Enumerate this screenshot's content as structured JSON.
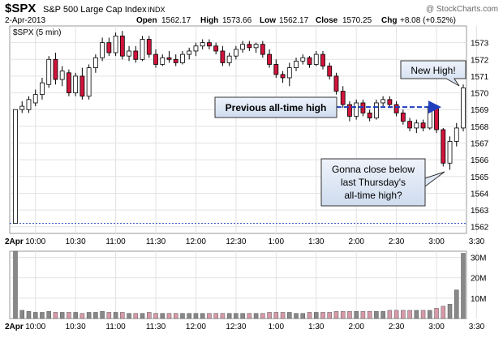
{
  "header": {
    "symbol": "$SPX",
    "name": "S&P 500 Large Cap Index",
    "exchange": "INDX",
    "watermark": "@ StockCharts.com",
    "date": "2-Apr-2013",
    "open_label": "Open",
    "open_value": "1562.17",
    "high_label": "High",
    "high_value": "1573.66",
    "low_label": "Low",
    "low_value": "1562.17",
    "close_label": "Close",
    "close_value": "1570.25",
    "chg_label": "Chg",
    "chg_value": "+8.08 (+0.52%)"
  },
  "chart_data": {
    "type": "candlestick",
    "legend": "$SPX (5 min)",
    "x_ticks": [
      "2Apr",
      "10:00",
      "10:30",
      "11:00",
      "11:30",
      "12:00",
      "12:30",
      "1:00",
      "1:30",
      "2:00",
      "2:30",
      "3:00",
      "3:30"
    ],
    "y_ticks": [
      1562,
      1563,
      1564,
      1565,
      1566,
      1567,
      1568,
      1569,
      1570,
      1571,
      1572,
      1573
    ],
    "ylim": [
      1561.6,
      1574.0
    ],
    "volume_ticks": [
      "10M",
      "20M",
      "30M"
    ],
    "volume_ylim": [
      0,
      33
    ],
    "colors": {
      "up": "#ffffff",
      "down": "#d1143c",
      "volume_up": "#888888",
      "volume_down": "#d89aa8",
      "arrow": "#1f3fbf"
    },
    "candles": [
      {
        "o": 1562.2,
        "h": 1569.0,
        "l": 1562.2,
        "c": 1569.0
      },
      {
        "o": 1569.0,
        "h": 1569.5,
        "l": 1568.8,
        "c": 1569.2
      },
      {
        "o": 1569.0,
        "h": 1569.8,
        "l": 1568.8,
        "c": 1569.6
      },
      {
        "o": 1569.4,
        "h": 1570.2,
        "l": 1569.2,
        "c": 1569.9
      },
      {
        "o": 1569.9,
        "h": 1570.9,
        "l": 1569.6,
        "c": 1570.6
      },
      {
        "o": 1570.5,
        "h": 1572.2,
        "l": 1570.3,
        "c": 1572.0
      },
      {
        "o": 1572.0,
        "h": 1572.4,
        "l": 1570.5,
        "c": 1570.8
      },
      {
        "o": 1570.8,
        "h": 1571.6,
        "l": 1570.4,
        "c": 1571.3
      },
      {
        "o": 1571.2,
        "h": 1571.4,
        "l": 1569.8,
        "c": 1570.0
      },
      {
        "o": 1570.0,
        "h": 1571.2,
        "l": 1569.8,
        "c": 1571.0
      },
      {
        "o": 1571.0,
        "h": 1571.5,
        "l": 1569.6,
        "c": 1569.8
      },
      {
        "o": 1569.8,
        "h": 1571.7,
        "l": 1569.6,
        "c": 1571.5
      },
      {
        "o": 1571.5,
        "h": 1572.3,
        "l": 1571.2,
        "c": 1572.1
      },
      {
        "o": 1572.1,
        "h": 1573.3,
        "l": 1571.9,
        "c": 1573.0
      },
      {
        "o": 1573.0,
        "h": 1573.3,
        "l": 1572.2,
        "c": 1572.4
      },
      {
        "o": 1572.4,
        "h": 1573.6,
        "l": 1572.2,
        "c": 1573.4
      },
      {
        "o": 1573.4,
        "h": 1573.7,
        "l": 1572.0,
        "c": 1572.2
      },
      {
        "o": 1572.2,
        "h": 1572.8,
        "l": 1571.9,
        "c": 1572.5
      },
      {
        "o": 1572.5,
        "h": 1572.8,
        "l": 1571.8,
        "c": 1572.0
      },
      {
        "o": 1572.0,
        "h": 1573.4,
        "l": 1571.9,
        "c": 1573.2
      },
      {
        "o": 1573.2,
        "h": 1573.4,
        "l": 1572.1,
        "c": 1572.3
      },
      {
        "o": 1572.3,
        "h": 1572.6,
        "l": 1571.5,
        "c": 1571.7
      },
      {
        "o": 1571.7,
        "h": 1572.3,
        "l": 1571.6,
        "c": 1572.1
      },
      {
        "o": 1572.1,
        "h": 1572.5,
        "l": 1571.8,
        "c": 1572.0
      },
      {
        "o": 1572.0,
        "h": 1572.3,
        "l": 1571.6,
        "c": 1571.8
      },
      {
        "o": 1571.8,
        "h": 1572.5,
        "l": 1571.7,
        "c": 1572.3
      },
      {
        "o": 1572.3,
        "h": 1572.7,
        "l": 1572.0,
        "c": 1572.5
      },
      {
        "o": 1572.5,
        "h": 1573.0,
        "l": 1572.2,
        "c": 1572.8
      },
      {
        "o": 1572.8,
        "h": 1573.2,
        "l": 1572.6,
        "c": 1573.0
      },
      {
        "o": 1573.0,
        "h": 1573.2,
        "l": 1572.6,
        "c": 1572.8
      },
      {
        "o": 1572.8,
        "h": 1573.0,
        "l": 1572.3,
        "c": 1572.5
      },
      {
        "o": 1572.5,
        "h": 1572.8,
        "l": 1571.6,
        "c": 1571.8
      },
      {
        "o": 1571.8,
        "h": 1572.4,
        "l": 1571.6,
        "c": 1572.2
      },
      {
        "o": 1572.2,
        "h": 1572.8,
        "l": 1572.0,
        "c": 1572.6
      },
      {
        "o": 1572.6,
        "h": 1573.1,
        "l": 1572.4,
        "c": 1572.9
      },
      {
        "o": 1572.9,
        "h": 1573.1,
        "l": 1572.5,
        "c": 1572.7
      },
      {
        "o": 1572.7,
        "h": 1573.0,
        "l": 1572.4,
        "c": 1572.9
      },
      {
        "o": 1572.9,
        "h": 1573.1,
        "l": 1572.1,
        "c": 1572.3
      },
      {
        "o": 1572.3,
        "h": 1572.6,
        "l": 1571.5,
        "c": 1571.7
      },
      {
        "o": 1571.7,
        "h": 1572.0,
        "l": 1570.9,
        "c": 1571.1
      },
      {
        "o": 1571.1,
        "h": 1571.3,
        "l": 1570.6,
        "c": 1570.9
      },
      {
        "o": 1570.9,
        "h": 1571.8,
        "l": 1570.4,
        "c": 1571.5
      },
      {
        "o": 1571.5,
        "h": 1572.1,
        "l": 1571.3,
        "c": 1571.9
      },
      {
        "o": 1571.9,
        "h": 1572.3,
        "l": 1571.7,
        "c": 1572.1
      },
      {
        "o": 1572.1,
        "h": 1572.2,
        "l": 1571.5,
        "c": 1571.7
      },
      {
        "o": 1571.7,
        "h": 1572.5,
        "l": 1571.6,
        "c": 1572.3
      },
      {
        "o": 1572.3,
        "h": 1572.5,
        "l": 1571.4,
        "c": 1571.6
      },
      {
        "o": 1571.6,
        "h": 1571.8,
        "l": 1570.8,
        "c": 1571.0
      },
      {
        "o": 1571.0,
        "h": 1571.2,
        "l": 1569.9,
        "c": 1570.1
      },
      {
        "o": 1570.1,
        "h": 1570.4,
        "l": 1569.1,
        "c": 1569.3
      },
      {
        "o": 1569.3,
        "h": 1569.5,
        "l": 1568.3,
        "c": 1568.6
      },
      {
        "o": 1568.6,
        "h": 1569.6,
        "l": 1568.4,
        "c": 1569.4
      },
      {
        "o": 1569.4,
        "h": 1569.6,
        "l": 1568.6,
        "c": 1568.8
      },
      {
        "o": 1568.8,
        "h": 1569.0,
        "l": 1568.3,
        "c": 1568.5
      },
      {
        "o": 1568.5,
        "h": 1569.6,
        "l": 1568.4,
        "c": 1569.4
      },
      {
        "o": 1569.4,
        "h": 1569.8,
        "l": 1569.2,
        "c": 1569.6
      },
      {
        "o": 1569.6,
        "h": 1569.8,
        "l": 1569.1,
        "c": 1569.3
      },
      {
        "o": 1569.3,
        "h": 1569.5,
        "l": 1568.6,
        "c": 1568.8
      },
      {
        "o": 1568.8,
        "h": 1569.0,
        "l": 1568.1,
        "c": 1568.3
      },
      {
        "o": 1568.3,
        "h": 1568.5,
        "l": 1567.7,
        "c": 1567.9
      },
      {
        "o": 1567.9,
        "h": 1568.4,
        "l": 1567.6,
        "c": 1568.2
      },
      {
        "o": 1568.2,
        "h": 1568.4,
        "l": 1567.7,
        "c": 1567.9
      },
      {
        "o": 1567.9,
        "h": 1569.4,
        "l": 1567.8,
        "c": 1569.2
      },
      {
        "o": 1569.2,
        "h": 1569.3,
        "l": 1567.6,
        "c": 1567.8
      },
      {
        "o": 1567.8,
        "h": 1567.9,
        "l": 1565.6,
        "c": 1565.8
      },
      {
        "o": 1565.8,
        "h": 1567.4,
        "l": 1565.4,
        "c": 1567.1
      },
      {
        "o": 1567.1,
        "h": 1568.2,
        "l": 1566.8,
        "c": 1567.9
      },
      {
        "o": 1567.9,
        "h": 1570.5,
        "l": 1567.7,
        "c": 1570.3
      }
    ],
    "volumes": [
      33,
      4,
      3.5,
      3,
      3,
      3.5,
      3,
      3,
      3,
      3,
      2.5,
      3,
      3,
      3.5,
      3,
      3,
      3,
      2.5,
      2.5,
      2.5,
      3,
      2.5,
      2.5,
      2.5,
      2.5,
      2.5,
      2.5,
      2.5,
      2.5,
      2.5,
      2.5,
      2.5,
      2.5,
      2.5,
      2.5,
      2.5,
      2.5,
      2.5,
      3,
      3,
      3,
      3,
      2.5,
      2.5,
      3,
      3,
      3,
      3,
      3.5,
      3.5,
      3.5,
      3.5,
      3.5,
      3.5,
      3.5,
      3.5,
      4,
      4,
      4,
      4,
      4,
      4,
      4,
      5,
      6,
      7,
      14,
      32
    ],
    "reference_line": {
      "value": 1562.2
    },
    "previous_high_line": {
      "value": 1569.15
    },
    "annotations": {
      "previous_high": "Previous all-time high",
      "new_high": "New High!",
      "question_line1": "Gonna close below",
      "question_line2": "last Thursday's",
      "question_line3": "all-time high?"
    }
  }
}
